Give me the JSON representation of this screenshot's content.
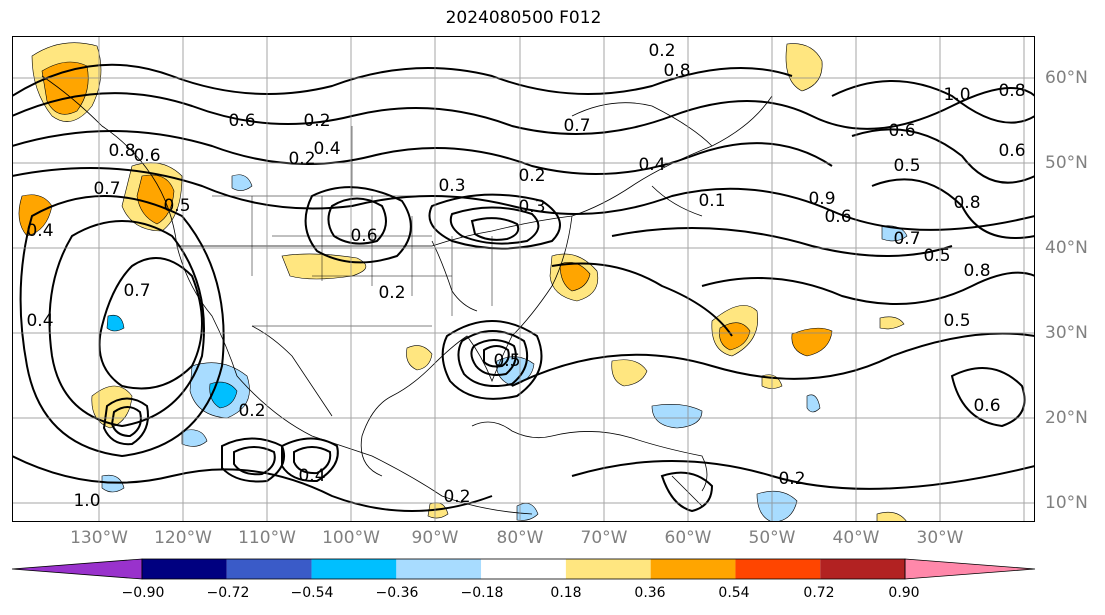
{
  "title": "2024080500 F012",
  "lon_labels": [
    "130°W",
    "120°W",
    "110°W",
    "100°W",
    "90°W",
    "80°W",
    "70°W",
    "60°W",
    "50°W",
    "40°W",
    "30°W"
  ],
  "lat_labels": [
    "60°N",
    "50°N",
    "40°N",
    "30°N",
    "20°N",
    "10°N"
  ],
  "colorbar": {
    "colors": [
      "#9932cc",
      "#000080",
      "#3a5bc8",
      "#00bfff",
      "#a8dcff",
      "#ffffff",
      "#ffe680",
      "#ffa500",
      "#ff4500",
      "#b22222",
      "#ff88aa"
    ],
    "ticks": [
      "−0.90",
      "−0.72",
      "−0.54",
      "−0.36",
      "−0.18",
      "0.18",
      "0.36",
      "0.54",
      "0.72",
      "0.90"
    ]
  },
  "contour_labels": [
    "0.2",
    "0.6",
    "0.2",
    "0.4",
    "0.3",
    "0.2",
    "0.7",
    "0.8",
    "0.2",
    "0.1",
    "0.4",
    "0.6",
    "0.5",
    "0.9",
    "0.6",
    "0.8",
    "0.7",
    "1.0",
    "0.8",
    "0.6",
    "0.5",
    "0.8",
    "0.7",
    "0.6",
    "0.5",
    "0.4",
    "0.7",
    "0.6",
    "0.2",
    "0.8",
    "0.4",
    "0.2",
    "0.2",
    "0.4",
    "1.0",
    "0.6",
    "0.5",
    "0.3",
    "0.5",
    "0.2"
  ]
}
